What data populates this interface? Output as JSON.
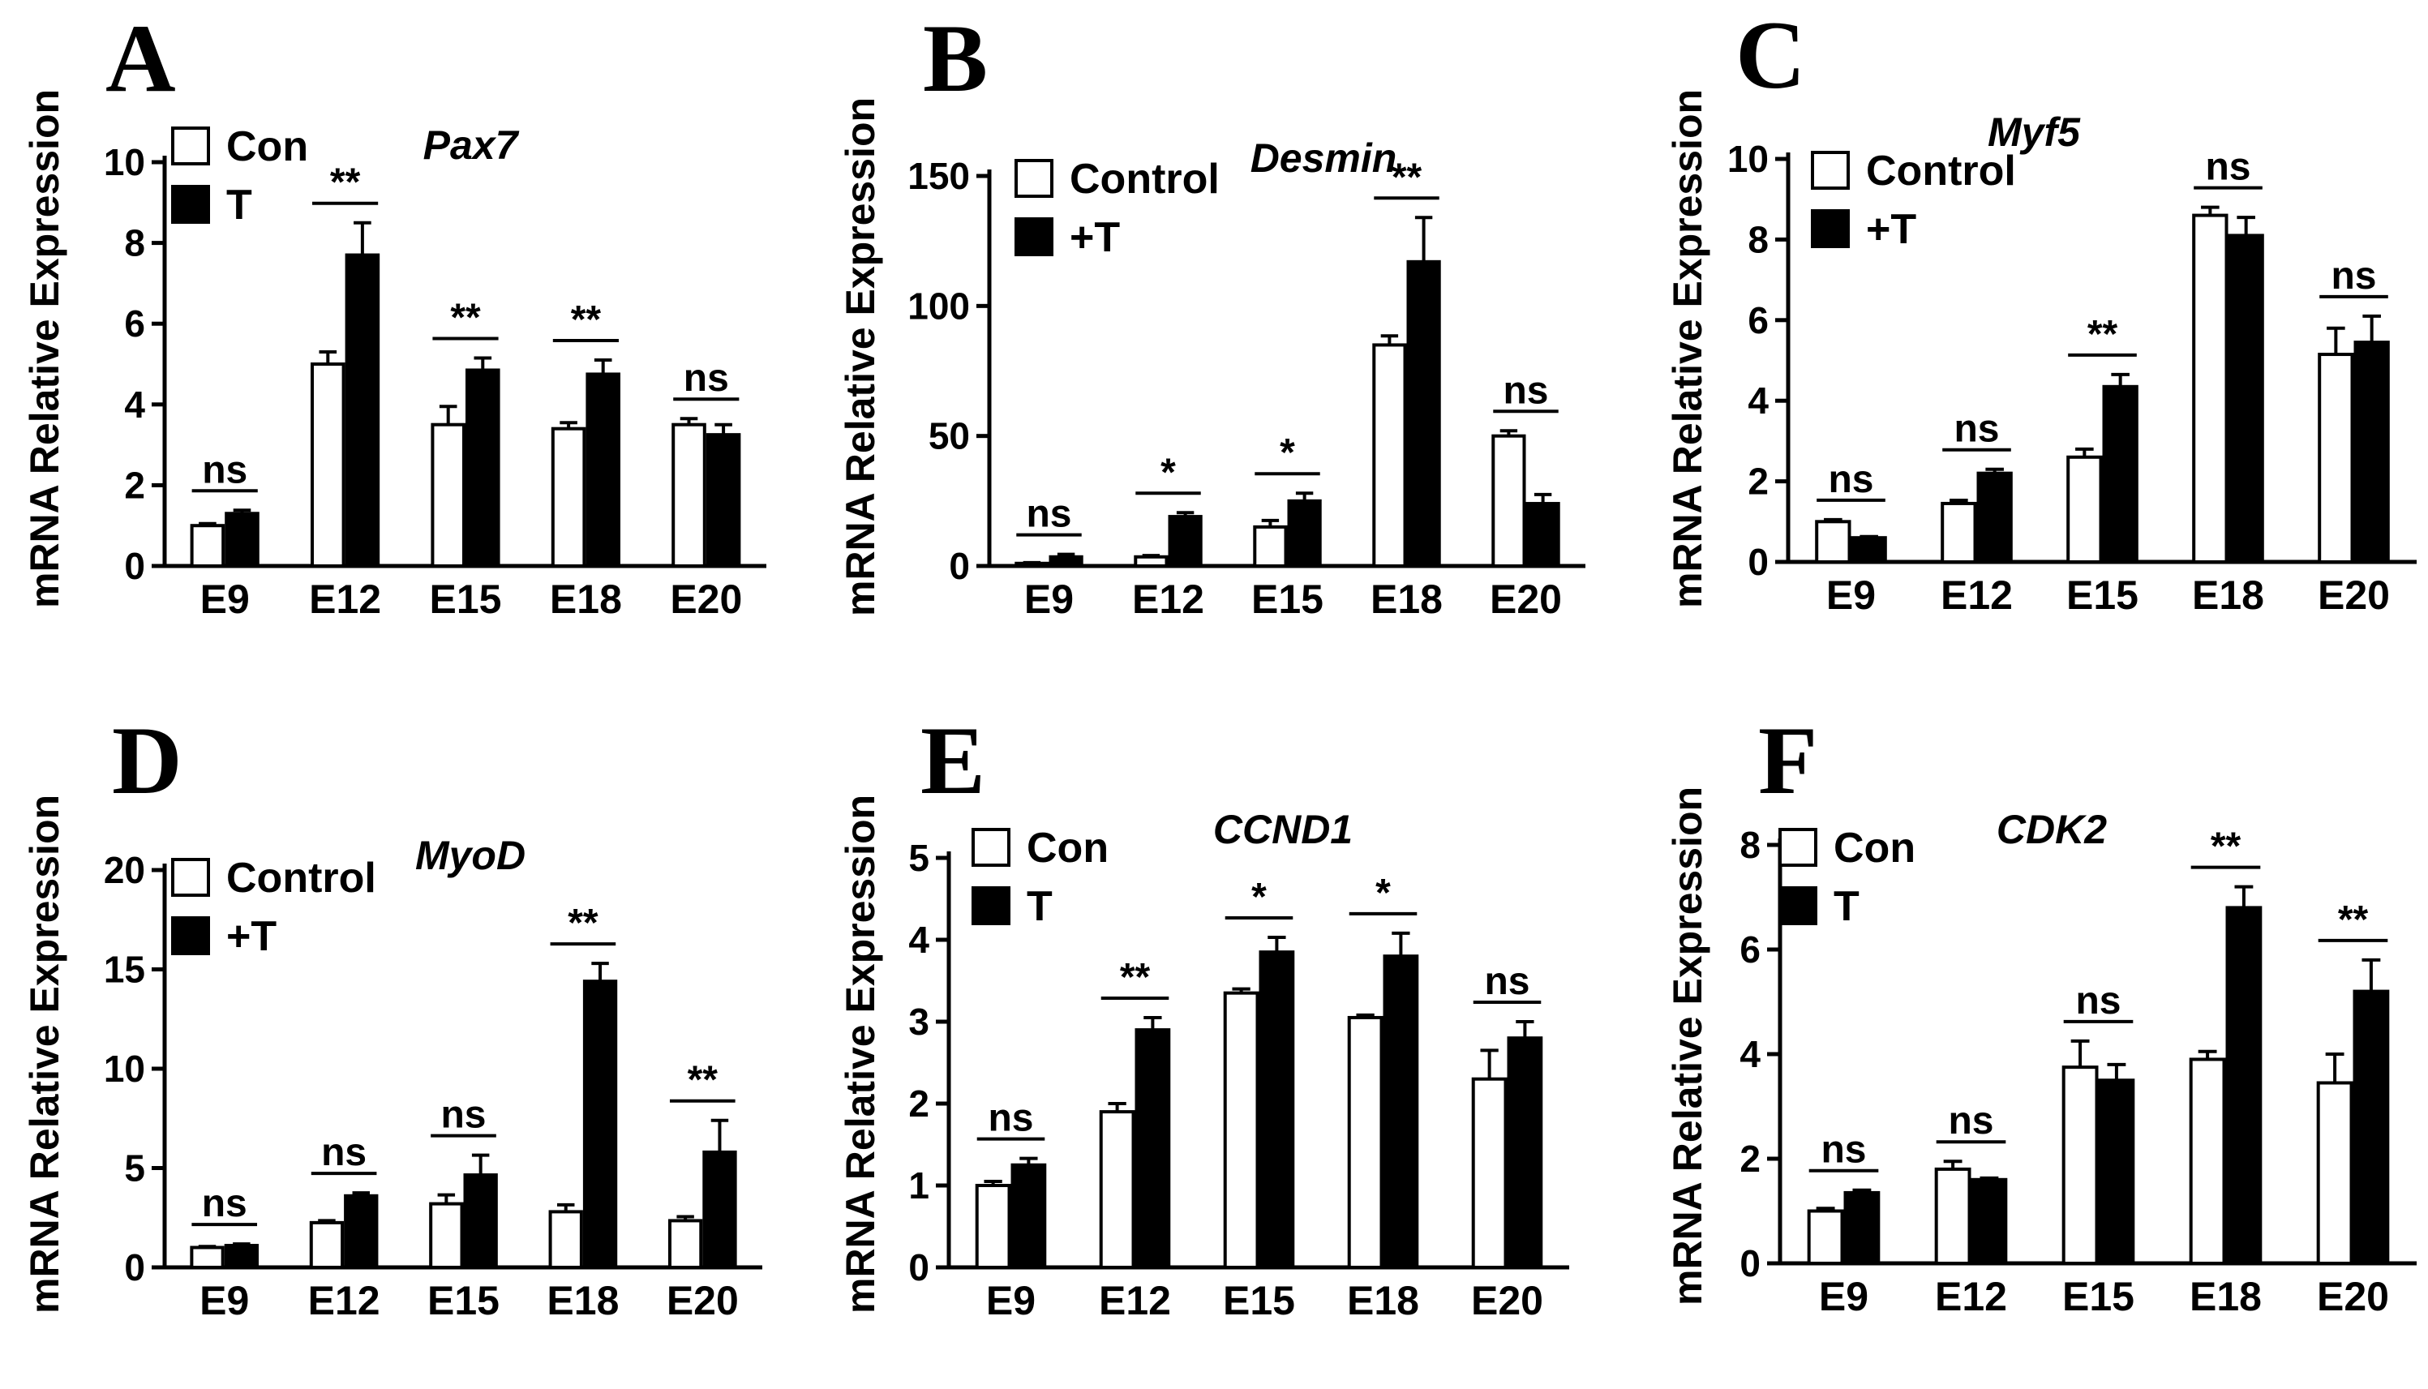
{
  "chart_data": [
    {
      "panel": "A",
      "type": "bar",
      "title": "Pax7",
      "ylabel": "mRNA Relative Expression",
      "categories": [
        "E9",
        "E12",
        "E15",
        "E18",
        "E20"
      ],
      "yticks": [
        "0",
        "2",
        "4",
        "6",
        "8",
        "10"
      ],
      "ylim": [
        0,
        10
      ],
      "legend": [
        "Con",
        "T"
      ],
      "series": [
        {
          "name": "Con",
          "values": [
            1.0,
            5.0,
            3.5,
            3.4,
            3.5
          ],
          "errors": [
            0.05,
            0.3,
            0.45,
            0.15,
            0.15
          ]
        },
        {
          "name": "T",
          "values": [
            1.3,
            7.7,
            4.85,
            4.75,
            3.25
          ],
          "errors": [
            0.08,
            0.8,
            0.3,
            0.35,
            0.25
          ]
        }
      ],
      "significance": [
        "ns",
        "**",
        "**",
        "**",
        "ns"
      ]
    },
    {
      "panel": "B",
      "type": "bar",
      "title": "Desmin",
      "ylabel": "mRNA Relative Expression",
      "categories": [
        "E9",
        "E12",
        "E15",
        "E18",
        "E20"
      ],
      "yticks": [
        "0",
        "50",
        "100",
        "150"
      ],
      "ylim": [
        0,
        150
      ],
      "legend": [
        "Control",
        "+T"
      ],
      "series": [
        {
          "name": "Control",
          "values": [
            1.0,
            3.5,
            15,
            85,
            50
          ],
          "errors": [
            0.3,
            0.5,
            2.5,
            3.5,
            2
          ]
        },
        {
          "name": "+T",
          "values": [
            3.5,
            19,
            25,
            117,
            24
          ],
          "errors": [
            1,
            1.5,
            3,
            17,
            3.5
          ]
        }
      ],
      "significance": [
        "ns",
        "*",
        "*",
        "**",
        "ns"
      ]
    },
    {
      "panel": "C",
      "type": "bar",
      "title": "Myf5",
      "ylabel": "mRNA Relative Expression",
      "categories": [
        "E9",
        "E12",
        "E15",
        "E18",
        "E20"
      ],
      "yticks": [
        "0",
        "2",
        "4",
        "6",
        "8",
        "10"
      ],
      "ylim": [
        0,
        10
      ],
      "legend": [
        "Control",
        "+T"
      ],
      "series": [
        {
          "name": "Control",
          "values": [
            1.0,
            1.45,
            2.6,
            8.6,
            5.15
          ],
          "errors": [
            0.05,
            0.08,
            0.2,
            0.2,
            0.65
          ]
        },
        {
          "name": "+T",
          "values": [
            0.6,
            2.2,
            4.35,
            8.1,
            5.45
          ],
          "errors": [
            0.03,
            0.1,
            0.3,
            0.45,
            0.65
          ]
        }
      ],
      "significance": [
        "ns",
        "ns",
        "**",
        "ns",
        "ns"
      ]
    },
    {
      "panel": "D",
      "type": "bar",
      "title": "MyoD",
      "ylabel": "mRNA Relative Expression",
      "categories": [
        "E9",
        "E12",
        "E15",
        "E18",
        "E20"
      ],
      "yticks": [
        "0",
        "5",
        "10",
        "15",
        "20"
      ],
      "ylim": [
        0,
        20
      ],
      "legend": [
        "Control",
        "+T"
      ],
      "series": [
        {
          "name": "Control",
          "values": [
            1.0,
            2.25,
            3.2,
            2.8,
            2.35
          ],
          "errors": [
            0.05,
            0.1,
            0.45,
            0.35,
            0.2
          ]
        },
        {
          "name": "+T",
          "values": [
            1.1,
            3.6,
            4.65,
            14.4,
            5.8
          ],
          "errors": [
            0.08,
            0.15,
            1.0,
            0.9,
            1.6
          ]
        }
      ],
      "significance": [
        "ns",
        "ns",
        "ns",
        "**",
        "**"
      ]
    },
    {
      "panel": "E",
      "type": "bar",
      "title": "CCND1",
      "ylabel": "mRNA Relative Expression",
      "categories": [
        "E9",
        "E12",
        "E15",
        "E18",
        "E20"
      ],
      "yticks": [
        "0",
        "1",
        "2",
        "3",
        "4",
        "5"
      ],
      "ylim": [
        0,
        5
      ],
      "legend": [
        "Con",
        "T"
      ],
      "series": [
        {
          "name": "Con",
          "values": [
            1.0,
            1.9,
            3.35,
            3.05,
            2.3
          ],
          "errors": [
            0.05,
            0.1,
            0.05,
            0.03,
            0.35
          ]
        },
        {
          "name": "T",
          "values": [
            1.25,
            2.9,
            3.85,
            3.8,
            2.8
          ],
          "errors": [
            0.08,
            0.15,
            0.18,
            0.28,
            0.2
          ]
        }
      ],
      "significance": [
        "ns",
        "**",
        "*",
        "*",
        "ns"
      ]
    },
    {
      "panel": "F",
      "type": "bar",
      "title": "CDK2",
      "ylabel": "mRNA Relative Expression",
      "categories": [
        "E9",
        "E12",
        "E15",
        "E18",
        "E20"
      ],
      "yticks": [
        "0",
        "2",
        "4",
        "6",
        "8"
      ],
      "ylim": [
        0,
        8
      ],
      "legend": [
        "Con",
        "T"
      ],
      "series": [
        {
          "name": "Con",
          "values": [
            1.0,
            1.8,
            3.75,
            3.9,
            3.45
          ],
          "errors": [
            0.05,
            0.15,
            0.5,
            0.15,
            0.55
          ]
        },
        {
          "name": "T",
          "values": [
            1.35,
            1.6,
            3.5,
            6.8,
            5.2
          ],
          "errors": [
            0.05,
            0.03,
            0.3,
            0.4,
            0.6
          ]
        }
      ],
      "significance": [
        "ns",
        "ns",
        "ns",
        "**",
        "**"
      ]
    }
  ]
}
